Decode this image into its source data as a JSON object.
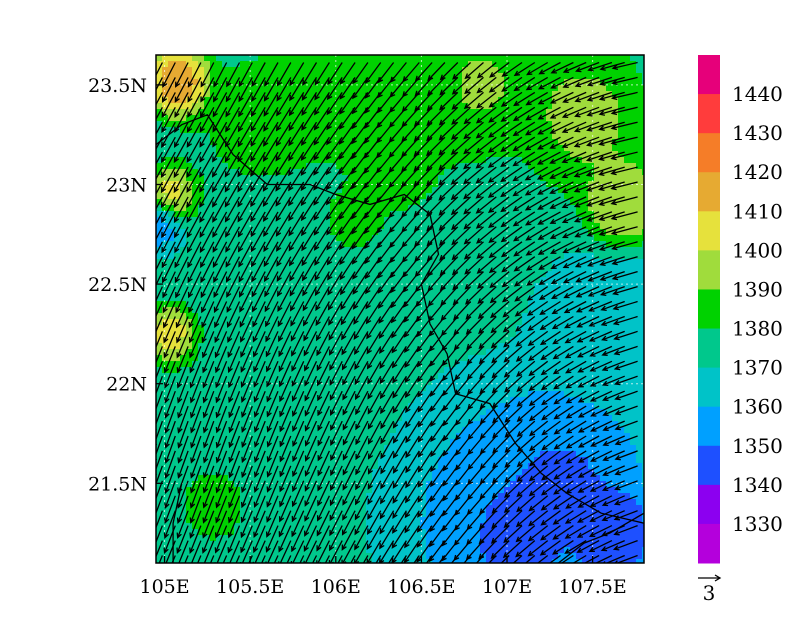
{
  "chart_data": {
    "type": "heatmap",
    "title": "",
    "xlabel": "",
    "ylabel": "",
    "xlim": [
      104.95,
      107.8
    ],
    "ylim": [
      21.1,
      23.65
    ],
    "x_ticks": [
      {
        "value": 105.0,
        "label": "105E"
      },
      {
        "value": 105.5,
        "label": "105.5E"
      },
      {
        "value": 106.0,
        "label": "106E"
      },
      {
        "value": 106.5,
        "label": "106.5E"
      },
      {
        "value": 107.0,
        "label": "107E"
      },
      {
        "value": 107.5,
        "label": "107.5E"
      }
    ],
    "y_ticks": [
      {
        "value": 21.5,
        "label": "21.5N"
      },
      {
        "value": 22.0,
        "label": "22N"
      },
      {
        "value": 22.5,
        "label": "22.5N"
      },
      {
        "value": 23.0,
        "label": "23N"
      },
      {
        "value": 23.5,
        "label": "23.5N"
      }
    ],
    "grid": true,
    "colorbar": {
      "placement": "right",
      "levels": [
        {
          "label": "1440",
          "color": "#e6007a"
        },
        {
          "label": "1430",
          "color": "#ff3c3c"
        },
        {
          "label": "1420",
          "color": "#f57d28"
        },
        {
          "label": "1410",
          "color": "#e6aa32"
        },
        {
          "label": "1400",
          "color": "#e6e13c"
        },
        {
          "label": "1390",
          "color": "#a0dc3c"
        },
        {
          "label": "1380",
          "color": "#00d200"
        },
        {
          "label": "1370",
          "color": "#00c88c"
        },
        {
          "label": "1360",
          "color": "#00c3c8"
        },
        {
          "label": "1350",
          "color": "#00a0ff"
        },
        {
          "label": "1340",
          "color": "#1e50ff"
        },
        {
          "label": "1330",
          "color": "#8c00f0"
        },
        {
          "label": "",
          "color": "#b400dc"
        }
      ]
    },
    "field_blobs": [
      {
        "x": 106.05,
        "y": 22.35,
        "value": 1372,
        "r": 1.6
      },
      {
        "x": 106.15,
        "y": 23.25,
        "value": 1385,
        "r": 0.7
      },
      {
        "x": 105.75,
        "y": 22.2,
        "value": 1383,
        "r": 0.55
      },
      {
        "x": 105.55,
        "y": 23.25,
        "value": 1386,
        "r": 0.45
      },
      {
        "x": 106.1,
        "y": 22.8,
        "value": 1396,
        "r": 0.18
      },
      {
        "x": 106.4,
        "y": 22.95,
        "value": 1384,
        "r": 0.45
      },
      {
        "x": 106.8,
        "y": 23.45,
        "value": 1396,
        "r": 0.35
      },
      {
        "x": 107.4,
        "y": 23.3,
        "value": 1394,
        "r": 0.35
      },
      {
        "x": 107.65,
        "y": 22.9,
        "value": 1400,
        "r": 0.22
      },
      {
        "x": 107.55,
        "y": 22.2,
        "value": 1362,
        "r": 0.45
      },
      {
        "x": 106.9,
        "y": 21.45,
        "value": 1348,
        "r": 0.6
      },
      {
        "x": 107.25,
        "y": 21.55,
        "value": 1345,
        "r": 0.45
      },
      {
        "x": 107.05,
        "y": 21.25,
        "value": 1337,
        "r": 0.25
      },
      {
        "x": 107.6,
        "y": 21.25,
        "value": 1338,
        "r": 0.2
      },
      {
        "x": 105.1,
        "y": 23.5,
        "value": 1425,
        "r": 0.18
      },
      {
        "x": 105.05,
        "y": 22.95,
        "value": 1415,
        "r": 0.16
      },
      {
        "x": 105.05,
        "y": 22.25,
        "value": 1420,
        "r": 0.17
      },
      {
        "x": 104.98,
        "y": 22.8,
        "value": 1345,
        "r": 0.14
      },
      {
        "x": 105.05,
        "y": 21.8,
        "value": 1382,
        "r": 0.3
      },
      {
        "x": 105.3,
        "y": 21.4,
        "value": 1395,
        "r": 0.18
      }
    ],
    "wind_vectors": {
      "grid_spacing_deg": 0.075,
      "base_u": -1.1,
      "base_v": -2.6,
      "east_u_gradient": -1.2,
      "east_v_gradient": 1.8,
      "reference_vector_label": "3"
    },
    "boundaries": [
      [
        [
          104.95,
          23.2
        ],
        [
          105.1,
          23.3
        ],
        [
          105.25,
          23.35
        ],
        [
          105.4,
          23.15
        ],
        [
          105.6,
          23.0
        ],
        [
          105.85,
          23.0
        ],
        [
          106.0,
          22.95
        ],
        [
          106.2,
          22.9
        ],
        [
          106.4,
          22.95
        ],
        [
          106.55,
          22.85
        ],
        [
          106.6,
          22.65
        ],
        [
          106.5,
          22.5
        ],
        [
          106.55,
          22.3
        ],
        [
          106.65,
          22.15
        ],
        [
          106.7,
          21.95
        ],
        [
          106.9,
          21.9
        ],
        [
          107.05,
          21.7
        ],
        [
          107.2,
          21.55
        ],
        [
          107.35,
          21.45
        ],
        [
          107.55,
          21.35
        ],
        [
          107.8,
          21.3
        ]
      ],
      [
        [
          105.05,
          21.1
        ],
        [
          105.05,
          21.3
        ],
        [
          105.1,
          21.5
        ]
      ],
      [
        [
          107.3,
          21.1
        ],
        [
          107.45,
          21.2
        ],
        [
          107.6,
          21.25
        ],
        [
          107.8,
          21.35
        ]
      ]
    ]
  }
}
